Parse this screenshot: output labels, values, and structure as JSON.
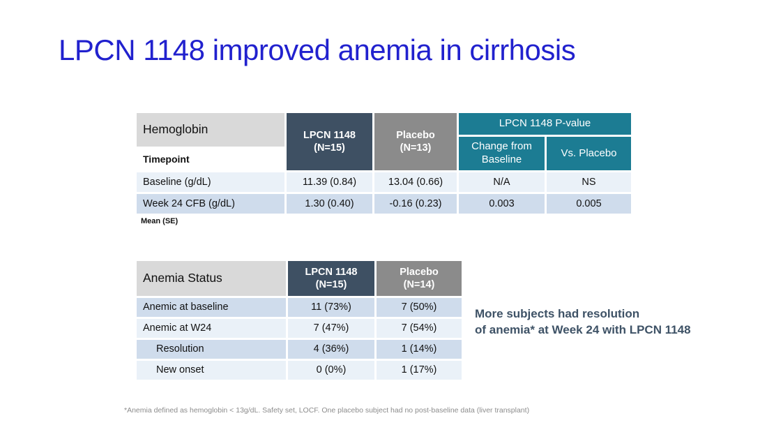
{
  "slide": {
    "title": "LPCN 1148 improved anemia in cirrhosis"
  },
  "colors": {
    "title_blue": "#2121CE",
    "dark_slate": "#3E5063",
    "mid_gray": "#8B8B8B",
    "light_gray": "#D9D9D9",
    "teal": "#1C7C93",
    "band_light": "#EAF1F8",
    "band_dark": "#CFDCEC",
    "annotation": "#3E5266",
    "footnote_gray": "#8C8C8C"
  },
  "table1": {
    "corner": "Hemoglobin",
    "subcorner": "Timepoint",
    "col_lpcn": {
      "line1": "LPCN 1148",
      "line2": "(N=15)"
    },
    "col_placebo": {
      "line1": "Placebo",
      "line2": "(N=13)"
    },
    "pvalue_group": "LPCN 1148 P-value",
    "col_change": {
      "line1": "Change from",
      "line2": "Baseline"
    },
    "col_vs": {
      "line1": "Vs. Placebo"
    },
    "rows": [
      {
        "label": "Baseline (g/dL)",
        "lpcn": "11.39 (0.84)",
        "placebo": "13.04 (0.66)",
        "p_change": "N/A",
        "p_vs": "NS"
      },
      {
        "label": "Week 24 CFB (g/dL)",
        "lpcn": "1.30 (0.40)",
        "placebo": "-0.16 (0.23)",
        "p_change": "0.003",
        "p_vs": "0.005"
      }
    ],
    "note": "Mean (SE)"
  },
  "table2": {
    "corner": "Anemia Status",
    "col_lpcn": {
      "line1": "LPCN 1148",
      "line2": "(N=15)"
    },
    "col_placebo": {
      "line1": "Placebo",
      "line2": "(N=14)"
    },
    "rows": [
      {
        "label": "Anemic at baseline",
        "lpcn": "11 (73%)",
        "placebo": "7 (50%)"
      },
      {
        "label": "Anemic at W24",
        "lpcn": "7 (47%)",
        "placebo": "7 (54%)"
      },
      {
        "label": "Resolution",
        "lpcn": "4 (36%)",
        "placebo": "1 (14%)"
      },
      {
        "label": "New onset",
        "lpcn": "0 (0%)",
        "placebo": "1 (17%)"
      }
    ]
  },
  "annotation": {
    "line1": "More subjects had resolution",
    "line2": "of anemia* at Week 24 with LPCN 1148"
  },
  "footnote": {
    "text": "*Anemia defined as hemoglobin < 13g/dL. Safety set, LOCF. One placebo subject had no post-baseline data (liver transplant)"
  }
}
